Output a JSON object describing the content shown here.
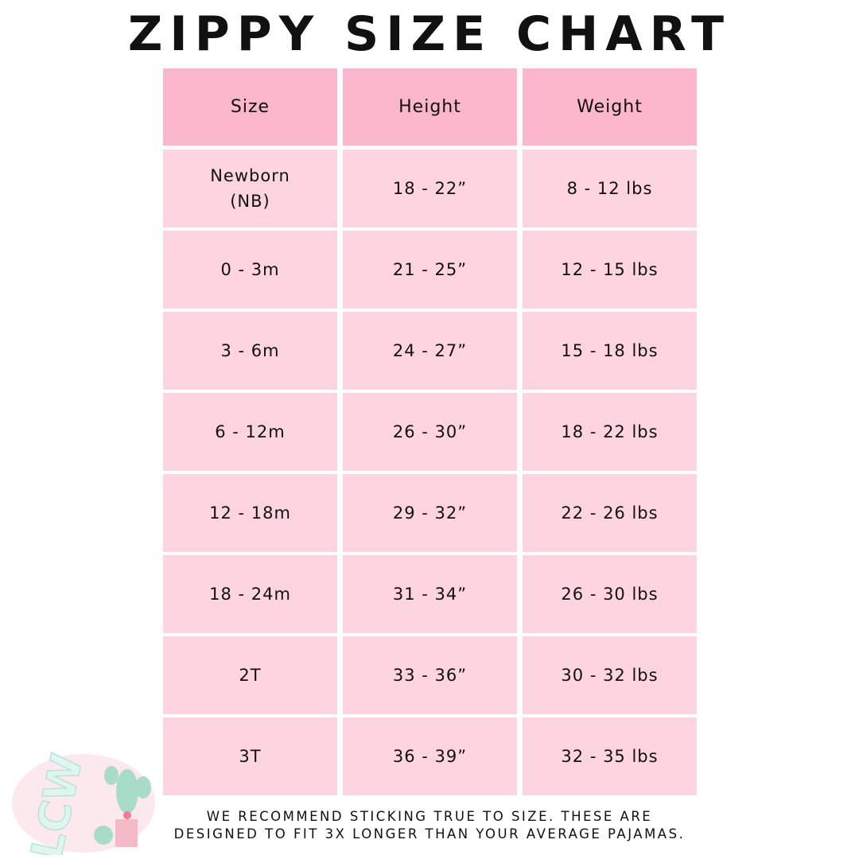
{
  "title": "ZIPPY SIZE CHART",
  "table": {
    "headers": [
      "Size",
      "Height",
      "Weight"
    ],
    "rows": [
      [
        "Newborn\n(NB)",
        "18 - 22”",
        "8 - 12 lbs"
      ],
      [
        "0 - 3m",
        "21 - 25”",
        "12 - 15 lbs"
      ],
      [
        "3 - 6m",
        "24 - 27”",
        "15 - 18 lbs"
      ],
      [
        "6 - 12m",
        "26 - 30”",
        "18 - 22 lbs"
      ],
      [
        "12 - 18m",
        "29 - 32”",
        "22 - 26 lbs"
      ],
      [
        "18 - 24m",
        "31 - 34”",
        "26 - 30 lbs"
      ],
      [
        "2T",
        "33 - 36”",
        "30 - 32 lbs"
      ],
      [
        "3T",
        "36 - 39”",
        "32 - 35 lbs"
      ]
    ]
  },
  "footer": {
    "line1": "We recommend sticking true to size. These are",
    "line2": "designed to fit 3x longer than your average pajamas."
  },
  "logo": {
    "text": "LCW"
  },
  "colors": {
    "header": "#fcb7cc",
    "cell": "#fdd4e0",
    "text": "#111111"
  }
}
